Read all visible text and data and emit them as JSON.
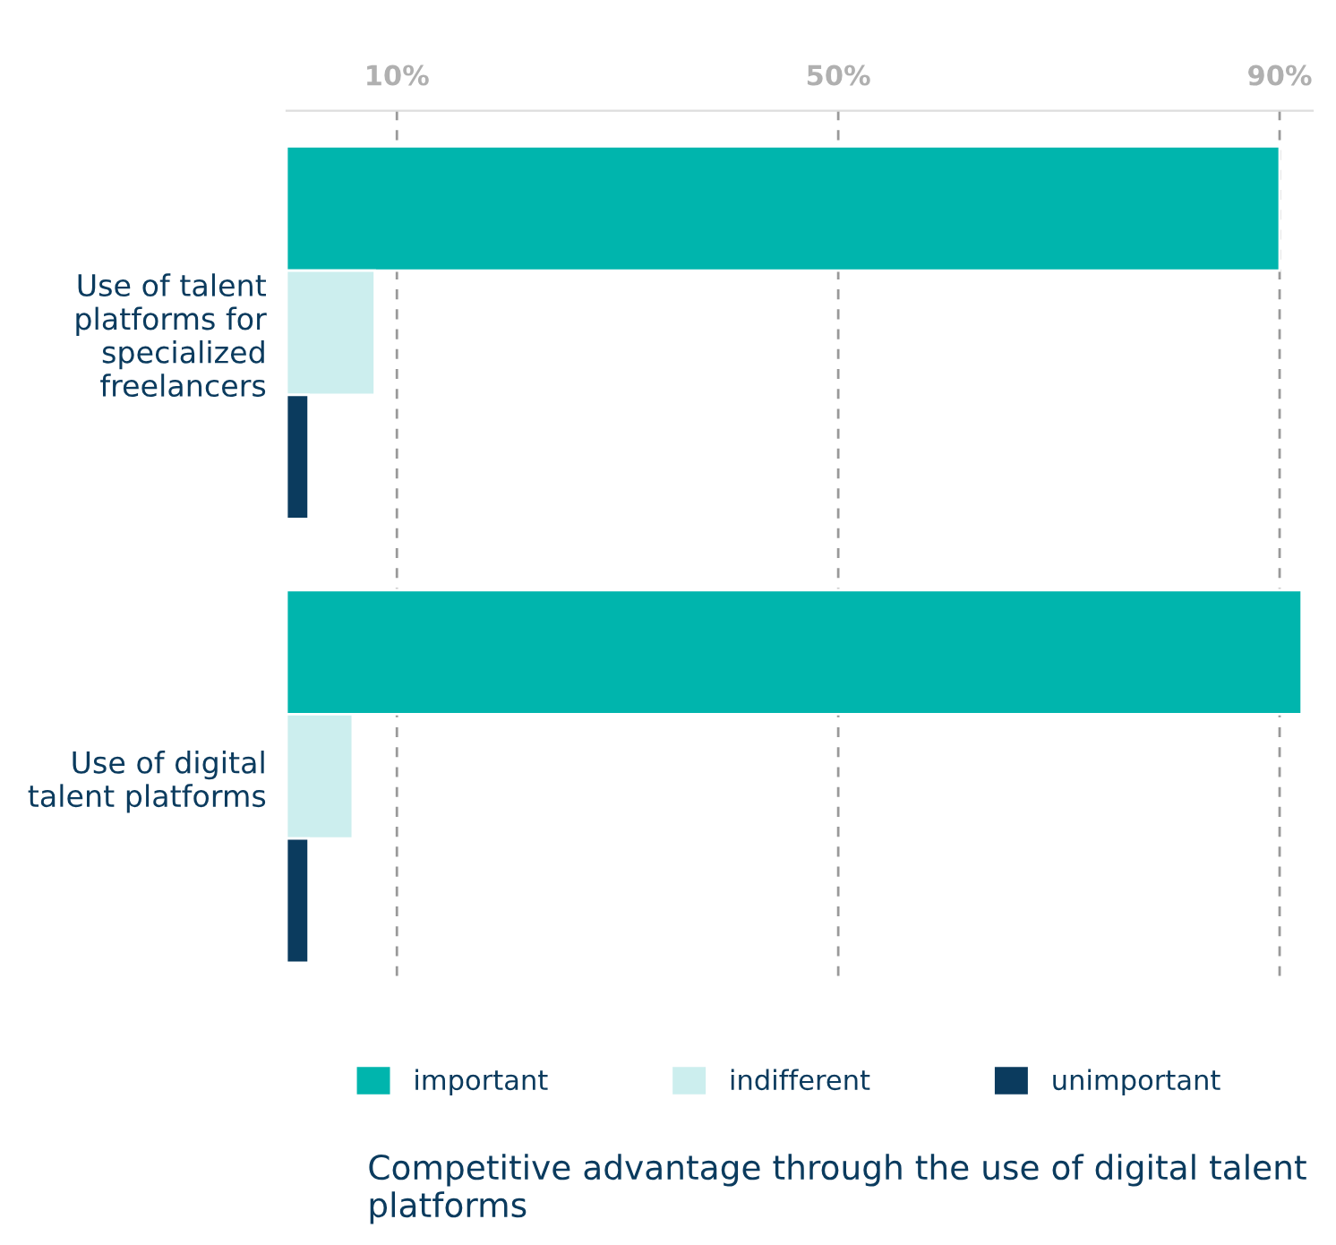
{
  "chart_data": {
    "type": "bar",
    "orientation": "horizontal",
    "categories": [
      "Use of talent\nplatforms for\nspecialized\nfreelancers",
      "Use of digital\ntalent platforms"
    ],
    "series": [
      {
        "name": "important",
        "color": "#00b5ad",
        "values": [
          90,
          92
        ]
      },
      {
        "name": "indifferent",
        "color": "#cceeee",
        "values": [
          8,
          6
        ]
      },
      {
        "name": "unimportant",
        "color": "#0b3b5e",
        "values": [
          2,
          2
        ]
      }
    ],
    "xticks": [
      {
        "value": 10,
        "label": "10%"
      },
      {
        "value": 50,
        "label": "50%"
      },
      {
        "value": 90,
        "label": "90%"
      }
    ],
    "xlim": [
      0,
      93
    ],
    "grid": "x",
    "line_style": "dashed",
    "legend": "bottom",
    "annotations": [
      "Competitive advantage through the use of digital talent platforms"
    ]
  }
}
